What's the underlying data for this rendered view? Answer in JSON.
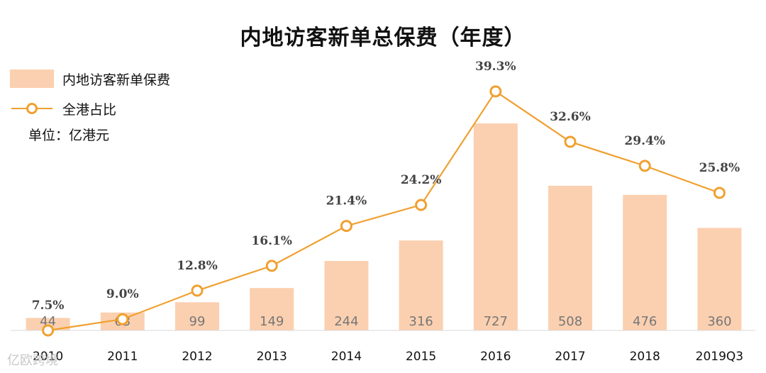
{
  "chart_data": {
    "type": "bar",
    "title": "内地访客新单总保费（年度）",
    "unit": "单位：亿港元",
    "categories": [
      "2010",
      "2011",
      "2012",
      "2013",
      "2014",
      "2015",
      "2016",
      "2017",
      "2018",
      "2019Q3"
    ],
    "series": [
      {
        "name": "内地访客新单保费",
        "type": "bar",
        "values": [
          44,
          63,
          99,
          149,
          244,
          316,
          727,
          508,
          476,
          360
        ],
        "labels": [
          "44",
          "63",
          "99",
          "149",
          "244",
          "316",
          "727",
          "508",
          "476",
          "360"
        ]
      },
      {
        "name": "全港占比",
        "type": "line",
        "values": [
          7.5,
          9.0,
          12.8,
          16.1,
          21.4,
          24.2,
          39.3,
          32.6,
          29.4,
          25.8
        ],
        "labels": [
          "7.5%",
          "9.0%",
          "12.8%",
          "16.1%",
          "21.4%",
          "24.2%",
          "39.3%",
          "32.6%",
          "29.4%",
          "25.8%"
        ]
      }
    ],
    "legend": "top-left",
    "grid": false,
    "colors": {
      "bar": "#fbd0b0",
      "line": "#f0a030",
      "bar_label": "#777777",
      "line_label": "#444444"
    }
  },
  "watermark": "亿欧跨境"
}
